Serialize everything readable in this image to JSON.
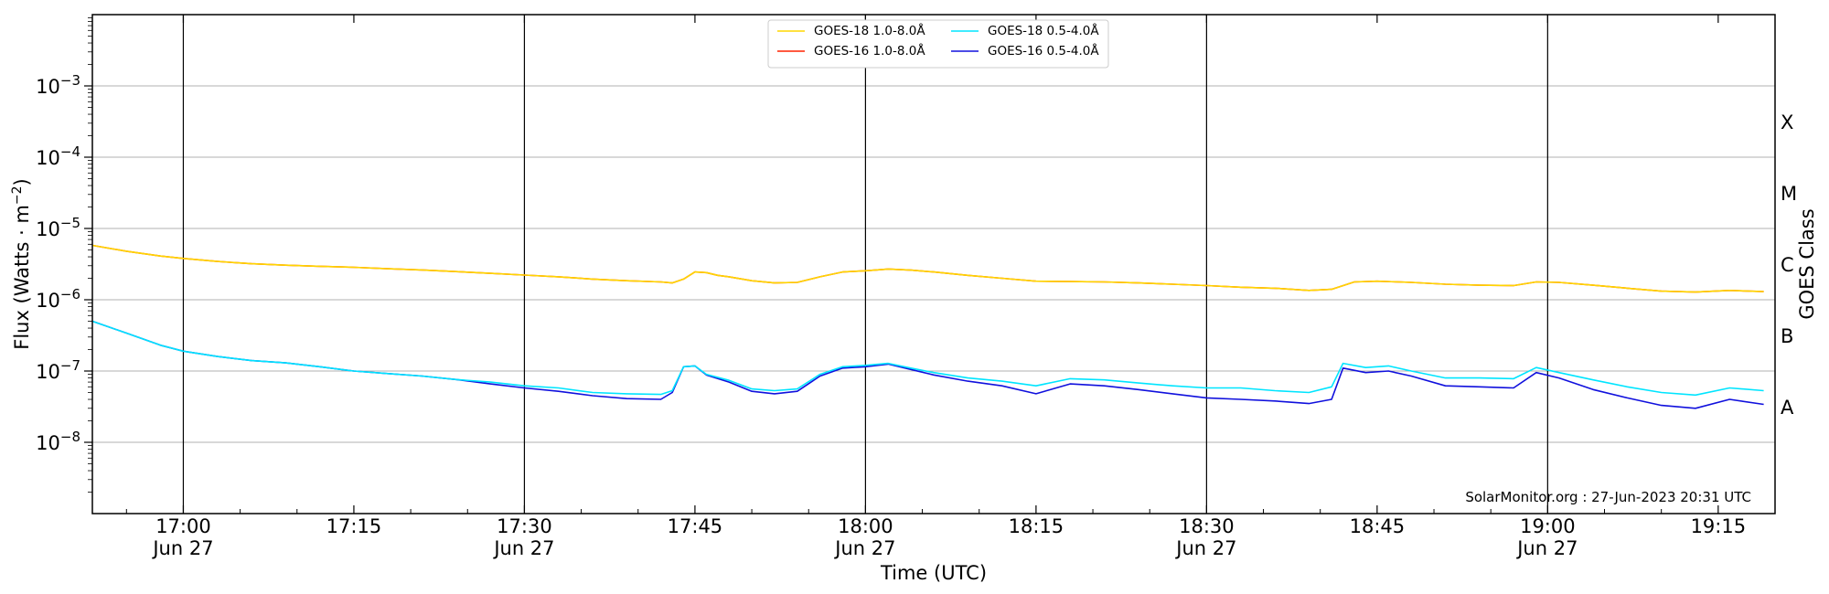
{
  "chart_data": {
    "type": "line",
    "title": "",
    "xlabel": "Time (UTC)",
    "ylabel": "Flux (Watts · m",
    "ylabel_exponent": "−2",
    "ylabel_close": ")",
    "right_axis_label": "GOES Class",
    "yscale": "log",
    "xlim": [
      "16:52",
      "19:20"
    ],
    "ylim": [
      1e-09,
      0.01
    ],
    "grid": "horizontal",
    "legend_position": "top-center",
    "x_ticks": [
      {
        "time": "17:00",
        "label": "17:00",
        "sublabel": "Jun 27"
      },
      {
        "time": "17:15",
        "label": "17:15",
        "sublabel": ""
      },
      {
        "time": "17:30",
        "label": "17:30",
        "sublabel": "Jun 27"
      },
      {
        "time": "17:45",
        "label": "17:45",
        "sublabel": ""
      },
      {
        "time": "18:00",
        "label": "18:00",
        "sublabel": "Jun 27"
      },
      {
        "time": "18:15",
        "label": "18:15",
        "sublabel": ""
      },
      {
        "time": "18:30",
        "label": "18:30",
        "sublabel": "Jun 27"
      },
      {
        "time": "18:45",
        "label": "18:45",
        "sublabel": ""
      },
      {
        "time": "19:00",
        "label": "19:00",
        "sublabel": "Jun 27"
      },
      {
        "time": "19:15",
        "label": "19:15",
        "sublabel": ""
      }
    ],
    "vertical_lines": [
      "17:00",
      "17:30",
      "18:00",
      "18:30",
      "19:00"
    ],
    "y_ticks": [
      {
        "value": 1e-08,
        "base": "10",
        "exp": "−8"
      },
      {
        "value": 1e-07,
        "base": "10",
        "exp": "−7"
      },
      {
        "value": 1e-06,
        "base": "10",
        "exp": "−6"
      },
      {
        "value": 1e-05,
        "base": "10",
        "exp": "−5"
      },
      {
        "value": 0.0001,
        "base": "10",
        "exp": "−4"
      },
      {
        "value": 0.001,
        "base": "10",
        "exp": "−3"
      }
    ],
    "goes_classes": [
      {
        "label": "A",
        "value": 3.16e-08
      },
      {
        "label": "B",
        "value": 3.16e-07
      },
      {
        "label": "C",
        "value": 3.16e-06
      },
      {
        "label": "M",
        "value": 3.16e-05
      },
      {
        "label": "X",
        "value": 0.000316
      }
    ],
    "credit": "SolarMonitor.org : 27-Jun-2023 20:31 UTC",
    "series": [
      {
        "name": "GOES-18 1.0-8.0Å",
        "color": "#ffd700",
        "points": [
          [
            "16:52",
            5.8e-06
          ],
          [
            "16:55",
            4.8e-06
          ],
          [
            "16:58",
            4.1e-06
          ],
          [
            "17:00",
            3.8e-06
          ],
          [
            "17:03",
            3.45e-06
          ],
          [
            "17:06",
            3.2e-06
          ],
          [
            "17:09",
            3.05e-06
          ],
          [
            "17:12",
            2.95e-06
          ],
          [
            "17:15",
            2.85e-06
          ],
          [
            "17:18",
            2.72e-06
          ],
          [
            "17:21",
            2.62e-06
          ],
          [
            "17:24",
            2.48e-06
          ],
          [
            "17:27",
            2.35e-06
          ],
          [
            "17:30",
            2.22e-06
          ],
          [
            "17:33",
            2.1e-06
          ],
          [
            "17:36",
            1.95e-06
          ],
          [
            "17:39",
            1.85e-06
          ],
          [
            "17:42",
            1.78e-06
          ],
          [
            "17:43",
            1.72e-06
          ],
          [
            "17:44",
            1.95e-06
          ],
          [
            "17:45",
            2.45e-06
          ],
          [
            "17:46",
            2.4e-06
          ],
          [
            "17:47",
            2.2e-06
          ],
          [
            "17:48",
            2.1e-06
          ],
          [
            "17:50",
            1.85e-06
          ],
          [
            "17:52",
            1.72e-06
          ],
          [
            "17:54",
            1.75e-06
          ],
          [
            "17:56",
            2.1e-06
          ],
          [
            "17:58",
            2.45e-06
          ],
          [
            "18:00",
            2.55e-06
          ],
          [
            "18:02",
            2.7e-06
          ],
          [
            "18:04",
            2.6e-06
          ],
          [
            "18:06",
            2.45e-06
          ],
          [
            "18:09",
            2.2e-06
          ],
          [
            "18:12",
            2e-06
          ],
          [
            "18:15",
            1.82e-06
          ],
          [
            "18:18",
            1.8e-06
          ],
          [
            "18:21",
            1.78e-06
          ],
          [
            "18:24",
            1.72e-06
          ],
          [
            "18:27",
            1.65e-06
          ],
          [
            "18:30",
            1.58e-06
          ],
          [
            "18:33",
            1.5e-06
          ],
          [
            "18:36",
            1.45e-06
          ],
          [
            "18:39",
            1.35e-06
          ],
          [
            "18:41",
            1.4e-06
          ],
          [
            "18:43",
            1.78e-06
          ],
          [
            "18:45",
            1.82e-06
          ],
          [
            "18:48",
            1.75e-06
          ],
          [
            "18:51",
            1.65e-06
          ],
          [
            "18:54",
            1.6e-06
          ],
          [
            "18:57",
            1.58e-06
          ],
          [
            "18:59",
            1.78e-06
          ],
          [
            "19:01",
            1.75e-06
          ],
          [
            "19:04",
            1.6e-06
          ],
          [
            "19:07",
            1.45e-06
          ],
          [
            "19:10",
            1.32e-06
          ],
          [
            "19:13",
            1.28e-06
          ],
          [
            "19:16",
            1.35e-06
          ],
          [
            "19:19",
            1.3e-06
          ]
        ]
      },
      {
        "name": "GOES-16 1.0-8.0Å",
        "color": "#ff2200",
        "points": [
          [
            "16:52",
            5.8e-06
          ],
          [
            "16:55",
            4.8e-06
          ],
          [
            "16:58",
            4.1e-06
          ],
          [
            "17:00",
            3.8e-06
          ],
          [
            "17:03",
            3.45e-06
          ],
          [
            "17:06",
            3.2e-06
          ],
          [
            "17:09",
            3.05e-06
          ],
          [
            "17:12",
            2.95e-06
          ],
          [
            "17:15",
            2.85e-06
          ],
          [
            "17:18",
            2.72e-06
          ],
          [
            "17:21",
            2.62e-06
          ],
          [
            "17:24",
            2.48e-06
          ],
          [
            "17:27",
            2.35e-06
          ],
          [
            "17:30",
            2.22e-06
          ],
          [
            "17:33",
            2.1e-06
          ],
          [
            "17:36",
            1.95e-06
          ],
          [
            "17:39",
            1.85e-06
          ],
          [
            "17:42",
            1.78e-06
          ],
          [
            "17:43",
            1.72e-06
          ],
          [
            "17:44",
            1.95e-06
          ],
          [
            "17:45",
            2.45e-06
          ],
          [
            "17:46",
            2.4e-06
          ],
          [
            "17:47",
            2.2e-06
          ],
          [
            "17:48",
            2.1e-06
          ],
          [
            "17:50",
            1.85e-06
          ],
          [
            "17:52",
            1.72e-06
          ],
          [
            "17:54",
            1.75e-06
          ],
          [
            "17:56",
            2.1e-06
          ],
          [
            "17:58",
            2.45e-06
          ],
          [
            "18:00",
            2.55e-06
          ],
          [
            "18:02",
            2.7e-06
          ],
          [
            "18:04",
            2.6e-06
          ],
          [
            "18:06",
            2.45e-06
          ],
          [
            "18:09",
            2.2e-06
          ],
          [
            "18:12",
            2e-06
          ],
          [
            "18:15",
            1.82e-06
          ],
          [
            "18:18",
            1.8e-06
          ],
          [
            "18:21",
            1.78e-06
          ],
          [
            "18:24",
            1.72e-06
          ],
          [
            "18:27",
            1.65e-06
          ],
          [
            "18:30",
            1.58e-06
          ],
          [
            "18:33",
            1.5e-06
          ],
          [
            "18:36",
            1.45e-06
          ],
          [
            "18:39",
            1.35e-06
          ],
          [
            "18:41",
            1.4e-06
          ],
          [
            "18:43",
            1.78e-06
          ],
          [
            "18:45",
            1.82e-06
          ],
          [
            "18:48",
            1.75e-06
          ],
          [
            "18:51",
            1.65e-06
          ],
          [
            "18:54",
            1.6e-06
          ],
          [
            "18:57",
            1.58e-06
          ],
          [
            "18:59",
            1.78e-06
          ],
          [
            "19:01",
            1.75e-06
          ],
          [
            "19:04",
            1.6e-06
          ],
          [
            "19:07",
            1.45e-06
          ],
          [
            "19:10",
            1.32e-06
          ],
          [
            "19:13",
            1.28e-06
          ],
          [
            "19:16",
            1.35e-06
          ],
          [
            "19:19",
            1.3e-06
          ]
        ]
      },
      {
        "name": "GOES-18 0.5-4.0Å",
        "color": "#00e5ff",
        "points": [
          [
            "16:52",
            5e-07
          ],
          [
            "16:55",
            3.4e-07
          ],
          [
            "16:58",
            2.3e-07
          ],
          [
            "17:00",
            1.9e-07
          ],
          [
            "17:03",
            1.6e-07
          ],
          [
            "17:06",
            1.4e-07
          ],
          [
            "17:09",
            1.3e-07
          ],
          [
            "17:12",
            1.15e-07
          ],
          [
            "17:15",
            1e-07
          ],
          [
            "17:18",
            9.2e-08
          ],
          [
            "17:21",
            8.5e-08
          ],
          [
            "17:24",
            7.6e-08
          ],
          [
            "17:27",
            7e-08
          ],
          [
            "17:30",
            6.2e-08
          ],
          [
            "17:33",
            5.8e-08
          ],
          [
            "17:36",
            5e-08
          ],
          [
            "17:39",
            4.8e-08
          ],
          [
            "17:42",
            4.7e-08
          ],
          [
            "17:43",
            5.3e-08
          ],
          [
            "17:44",
            1.15e-07
          ],
          [
            "17:45",
            1.18e-07
          ],
          [
            "17:46",
            9e-08
          ],
          [
            "17:48",
            7.4e-08
          ],
          [
            "17:50",
            5.6e-08
          ],
          [
            "17:52",
            5.3e-08
          ],
          [
            "17:54",
            5.6e-08
          ],
          [
            "17:56",
            9e-08
          ],
          [
            "17:58",
            1.15e-07
          ],
          [
            "18:00",
            1.2e-07
          ],
          [
            "18:02",
            1.28e-07
          ],
          [
            "18:04",
            1.1e-07
          ],
          [
            "18:06",
            9.5e-08
          ],
          [
            "18:09",
            8e-08
          ],
          [
            "18:12",
            7.2e-08
          ],
          [
            "18:15",
            6.2e-08
          ],
          [
            "18:18",
            7.8e-08
          ],
          [
            "18:21",
            7.5e-08
          ],
          [
            "18:24",
            6.8e-08
          ],
          [
            "18:27",
            6.2e-08
          ],
          [
            "18:30",
            5.8e-08
          ],
          [
            "18:33",
            5.8e-08
          ],
          [
            "18:36",
            5.3e-08
          ],
          [
            "18:39",
            5e-08
          ],
          [
            "18:41",
            6e-08
          ],
          [
            "18:42",
            1.28e-07
          ],
          [
            "18:44",
            1.12e-07
          ],
          [
            "18:46",
            1.18e-07
          ],
          [
            "18:48",
            1e-07
          ],
          [
            "18:51",
            8e-08
          ],
          [
            "18:54",
            8e-08
          ],
          [
            "18:57",
            7.8e-08
          ],
          [
            "18:59",
            1.12e-07
          ],
          [
            "19:01",
            9.5e-08
          ],
          [
            "19:04",
            7.5e-08
          ],
          [
            "19:07",
            6e-08
          ],
          [
            "19:10",
            5e-08
          ],
          [
            "19:13",
            4.6e-08
          ],
          [
            "19:16",
            5.8e-08
          ],
          [
            "19:19",
            5.3e-08
          ]
        ]
      },
      {
        "name": "GOES-16 0.5-4.0Å",
        "color": "#1010dd",
        "points": [
          [
            "16:52",
            5e-07
          ],
          [
            "16:55",
            3.4e-07
          ],
          [
            "16:58",
            2.3e-07
          ],
          [
            "17:00",
            1.9e-07
          ],
          [
            "17:03",
            1.6e-07
          ],
          [
            "17:06",
            1.4e-07
          ],
          [
            "17:09",
            1.3e-07
          ],
          [
            "17:12",
            1.15e-07
          ],
          [
            "17:15",
            1e-07
          ],
          [
            "17:18",
            9.2e-08
          ],
          [
            "17:21",
            8.5e-08
          ],
          [
            "17:24",
            7.6e-08
          ],
          [
            "17:27",
            6.6e-08
          ],
          [
            "17:30",
            5.8e-08
          ],
          [
            "17:33",
            5.2e-08
          ],
          [
            "17:36",
            4.5e-08
          ],
          [
            "17:39",
            4.1e-08
          ],
          [
            "17:42",
            4e-08
          ],
          [
            "17:43",
            5e-08
          ],
          [
            "17:44",
            1.15e-07
          ],
          [
            "17:45",
            1.18e-07
          ],
          [
            "17:46",
            8.8e-08
          ],
          [
            "17:48",
            7e-08
          ],
          [
            "17:50",
            5.2e-08
          ],
          [
            "17:52",
            4.8e-08
          ],
          [
            "17:54",
            5.2e-08
          ],
          [
            "17:56",
            8.5e-08
          ],
          [
            "17:58",
            1.1e-07
          ],
          [
            "18:00",
            1.15e-07
          ],
          [
            "18:02",
            1.25e-07
          ],
          [
            "18:04",
            1.05e-07
          ],
          [
            "18:06",
            8.8e-08
          ],
          [
            "18:09",
            7.2e-08
          ],
          [
            "18:12",
            6.2e-08
          ],
          [
            "18:15",
            4.8e-08
          ],
          [
            "18:18",
            6.6e-08
          ],
          [
            "18:21",
            6.2e-08
          ],
          [
            "18:24",
            5.5e-08
          ],
          [
            "18:27",
            4.8e-08
          ],
          [
            "18:30",
            4.2e-08
          ],
          [
            "18:33",
            4e-08
          ],
          [
            "18:36",
            3.8e-08
          ],
          [
            "18:39",
            3.5e-08
          ],
          [
            "18:41",
            4e-08
          ],
          [
            "18:42",
            1.1e-07
          ],
          [
            "18:44",
            9.5e-08
          ],
          [
            "18:46",
            1e-07
          ],
          [
            "18:48",
            8.5e-08
          ],
          [
            "18:51",
            6.2e-08
          ],
          [
            "18:54",
            6e-08
          ],
          [
            "18:57",
            5.8e-08
          ],
          [
            "18:59",
            9.5e-08
          ],
          [
            "19:01",
            8e-08
          ],
          [
            "19:04",
            5.5e-08
          ],
          [
            "19:07",
            4.2e-08
          ],
          [
            "19:10",
            3.3e-08
          ],
          [
            "19:13",
            3e-08
          ],
          [
            "19:16",
            4e-08
          ],
          [
            "19:19",
            3.4e-08
          ]
        ]
      }
    ]
  }
}
